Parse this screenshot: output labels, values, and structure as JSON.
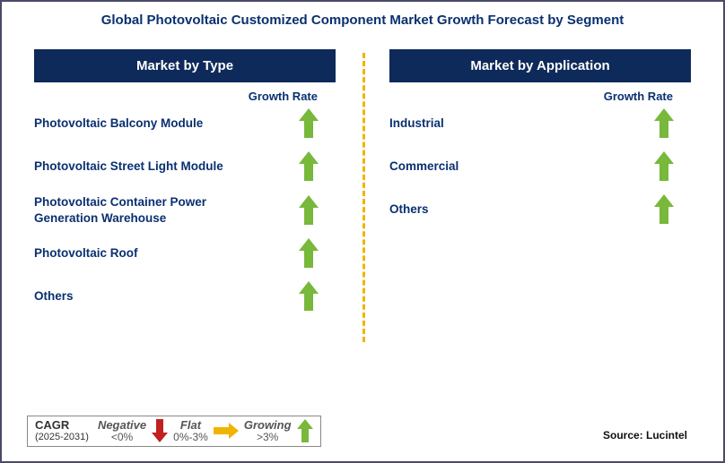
{
  "title": "Global Photovoltaic Customized Component Market Growth Forecast by Segment",
  "colors": {
    "header_bg": "#0e2a5a",
    "header_text": "#ffffff",
    "text_primary": "#0a3070",
    "divider": "#f0b400",
    "arrow_growing": "#78b83a",
    "arrow_flat": "#f0b400",
    "arrow_negative": "#c02020",
    "border": "#4a4a6a"
  },
  "left": {
    "header": "Market by Type",
    "growth_label": "Growth Rate",
    "rows": [
      {
        "label": "Photovoltaic Balcony Module",
        "trend": "growing"
      },
      {
        "label": "Photovoltaic Street Light Module",
        "trend": "growing"
      },
      {
        "label": "Photovoltaic Container Power Generation Warehouse",
        "trend": "growing"
      },
      {
        "label": "Photovoltaic Roof",
        "trend": "growing"
      },
      {
        "label": "Others",
        "trend": "growing"
      }
    ]
  },
  "right": {
    "header": "Market by Application",
    "growth_label": "Growth Rate",
    "rows": [
      {
        "label": "Industrial",
        "trend": "growing"
      },
      {
        "label": "Commercial",
        "trend": "growing"
      },
      {
        "label": "Others",
        "trend": "growing"
      }
    ]
  },
  "legend": {
    "cagr_label": "CAGR",
    "years": "(2025-2031)",
    "categories": [
      {
        "name": "Negative",
        "range": "<0%",
        "trend": "negative"
      },
      {
        "name": "Flat",
        "range": "0%-3%",
        "trend": "flat"
      },
      {
        "name": "Growing",
        "range": ">3%",
        "trend": "growing"
      }
    ]
  },
  "source": "Source: Lucintel"
}
